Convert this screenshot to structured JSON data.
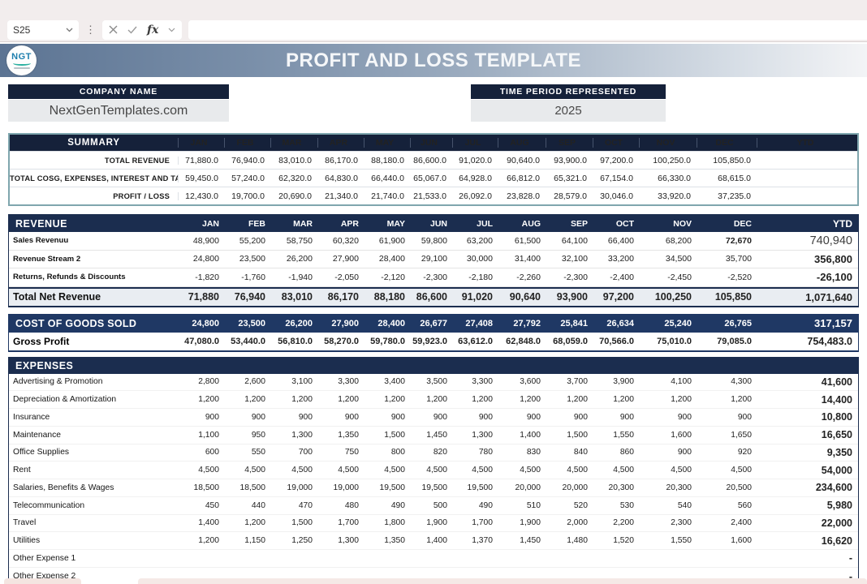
{
  "toolbar": {
    "cell_ref": "S25",
    "formula_value": ""
  },
  "banner": {
    "title": "PROFIT AND LOSS TEMPLATE",
    "logo_text": "NGT"
  },
  "info": {
    "company_label": "COMPANY NAME",
    "company_value": "NextGenTemplates.com",
    "period_label": "TIME PERIOD REPRESENTED",
    "period_value": "2025"
  },
  "months": [
    "JAN",
    "FEB",
    "MAR",
    "APR",
    "MAY",
    "JUN",
    "JUL",
    "AUG",
    "SEP",
    "OCT",
    "NOV",
    "DEC",
    "YTD"
  ],
  "summary": {
    "header_label": "SUMMARY",
    "rows": [
      {
        "label": "TOTAL REVENUE",
        "values": [
          "71,880.0",
          "76,940.0",
          "83,010.0",
          "86,170.0",
          "88,180.0",
          "86,600.0",
          "91,020.0",
          "90,640.0",
          "93,900.0",
          "97,200.0",
          "100,250.0",
          "105,850.0",
          ""
        ]
      },
      {
        "label": "TOTAL COSG, EXPENSES, INTEREST AND TAX",
        "values": [
          "59,450.0",
          "57,240.0",
          "62,320.0",
          "64,830.0",
          "66,440.0",
          "65,067.0",
          "64,928.0",
          "66,812.0",
          "65,321.0",
          "67,154.0",
          "66,330.0",
          "68,615.0",
          ""
        ]
      },
      {
        "label": "PROFIT / LOSS",
        "values": [
          "12,430.0",
          "19,700.0",
          "20,690.0",
          "21,340.0",
          "21,740.0",
          "21,533.0",
          "26,092.0",
          "23,828.0",
          "28,579.0",
          "30,046.0",
          "33,920.0",
          "37,235.0",
          ""
        ]
      }
    ]
  },
  "revenue": {
    "header_label": "REVENUE",
    "rows": [
      {
        "label": "Sales Revenuu",
        "style": "drow",
        "ytd_class": "light",
        "bold_cells": [
          11
        ],
        "values": [
          "48,900",
          "55,200",
          "58,750",
          "60,320",
          "61,900",
          "59,800",
          "63,200",
          "61,500",
          "64,100",
          "66,400",
          "68,200",
          "72,670",
          "740,940"
        ]
      },
      {
        "label": "Revenue Stream 2",
        "style": "drow",
        "values": [
          "24,800",
          "23,500",
          "26,200",
          "27,900",
          "28,400",
          "29,100",
          "30,000",
          "31,400",
          "32,100",
          "33,200",
          "34,500",
          "35,700",
          "356,800"
        ]
      },
      {
        "label": "Returns, Refunds & Discounts",
        "style": "drow",
        "values": [
          "-1,820",
          "-1,760",
          "-1,940",
          "-2,050",
          "-2,120",
          "-2,300",
          "-2,180",
          "-2,260",
          "-2,300",
          "-2,400",
          "-2,450",
          "-2,520",
          "-26,100"
        ]
      },
      {
        "label": "Total Net Revenue",
        "style": "drow total",
        "values": [
          "71,880",
          "76,940",
          "83,010",
          "86,170",
          "88,180",
          "86,600",
          "91,020",
          "90,640",
          "93,900",
          "97,200",
          "100,250",
          "105,850",
          "1,071,640"
        ]
      }
    ]
  },
  "cogs": {
    "rows": [
      {
        "label": "COST OF GOODS SOLD",
        "style": "navyrow",
        "values": [
          "24,800",
          "23,500",
          "26,200",
          "27,900",
          "28,400",
          "26,677",
          "27,408",
          "27,792",
          "25,841",
          "26,634",
          "25,240",
          "26,765",
          "317,157"
        ]
      },
      {
        "label": "Gross Profit",
        "style": "gprow",
        "values": [
          "47,080.0",
          "53,440.0",
          "56,810.0",
          "58,270.0",
          "59,780.0",
          "59,923.0",
          "63,612.0",
          "62,848.0",
          "68,059.0",
          "70,566.0",
          "75,010.0",
          "79,085.0",
          "754,483.0"
        ]
      }
    ]
  },
  "expenses": {
    "header_label": "EXPENSES",
    "rows": [
      {
        "label": "Advertising & Promotion",
        "style": "drow",
        "values": [
          "2,800",
          "2,600",
          "3,100",
          "3,300",
          "3,400",
          "3,500",
          "3,300",
          "3,600",
          "3,700",
          "3,900",
          "4,100",
          "4,300",
          "41,600"
        ]
      },
      {
        "label": "Depreciation & Amortization",
        "style": "drow",
        "values": [
          "1,200",
          "1,200",
          "1,200",
          "1,200",
          "1,200",
          "1,200",
          "1,200",
          "1,200",
          "1,200",
          "1,200",
          "1,200",
          "1,200",
          "14,400"
        ]
      },
      {
        "label": "Insurance",
        "style": "drow",
        "values": [
          "900",
          "900",
          "900",
          "900",
          "900",
          "900",
          "900",
          "900",
          "900",
          "900",
          "900",
          "900",
          "10,800"
        ]
      },
      {
        "label": "Maintenance",
        "style": "drow",
        "values": [
          "1,100",
          "950",
          "1,300",
          "1,350",
          "1,500",
          "1,450",
          "1,300",
          "1,400",
          "1,500",
          "1,550",
          "1,600",
          "1,650",
          "16,650"
        ]
      },
      {
        "label": "Office Supplies",
        "style": "drow",
        "values": [
          "600",
          "550",
          "700",
          "750",
          "800",
          "820",
          "780",
          "830",
          "840",
          "860",
          "900",
          "920",
          "9,350"
        ]
      },
      {
        "label": "Rent",
        "style": "drow",
        "values": [
          "4,500",
          "4,500",
          "4,500",
          "4,500",
          "4,500",
          "4,500",
          "4,500",
          "4,500",
          "4,500",
          "4,500",
          "4,500",
          "4,500",
          "54,000"
        ]
      },
      {
        "label": "Salaries, Benefits & Wages",
        "style": "drow",
        "values": [
          "18,500",
          "18,500",
          "19,000",
          "19,000",
          "19,500",
          "19,500",
          "19,500",
          "20,000",
          "20,000",
          "20,300",
          "20,300",
          "20,500",
          "234,600"
        ]
      },
      {
        "label": "Telecommunication",
        "style": "drow",
        "values": [
          "450",
          "440",
          "470",
          "480",
          "490",
          "500",
          "490",
          "510",
          "520",
          "530",
          "540",
          "560",
          "5,980"
        ]
      },
      {
        "label": "Travel",
        "style": "drow",
        "values": [
          "1,400",
          "1,200",
          "1,500",
          "1,700",
          "1,800",
          "1,900",
          "1,700",
          "1,900",
          "2,000",
          "2,200",
          "2,300",
          "2,400",
          "22,000"
        ]
      },
      {
        "label": "Utilities",
        "style": "drow",
        "values": [
          "1,200",
          "1,150",
          "1,250",
          "1,300",
          "1,350",
          "1,400",
          "1,370",
          "1,450",
          "1,480",
          "1,520",
          "1,550",
          "1,600",
          "16,620"
        ]
      },
      {
        "label": "Other Expense 1",
        "style": "drow",
        "values": [
          "",
          "",
          "",
          "",
          "",
          "",
          "",
          "",
          "",
          "",
          "",
          "",
          "-"
        ]
      },
      {
        "label": "Other Expense 2",
        "style": "drow",
        "values": [
          "",
          "",
          "",
          "",
          "",
          "",
          "",
          "",
          "",
          "",
          "",
          "",
          "-"
        ]
      }
    ]
  },
  "colors": {
    "header_navy_dark": "#15213a",
    "header_navy": "#1b2d4f",
    "cogs_navy": "#1f3864",
    "summary_border_teal": "#7fa6ae",
    "total_row_bg": "#e9edf2",
    "toolbar_bg": "#f2eded",
    "banner_gradient_left": "#5c7493",
    "banner_gradient_right": "#f3f4f6"
  }
}
